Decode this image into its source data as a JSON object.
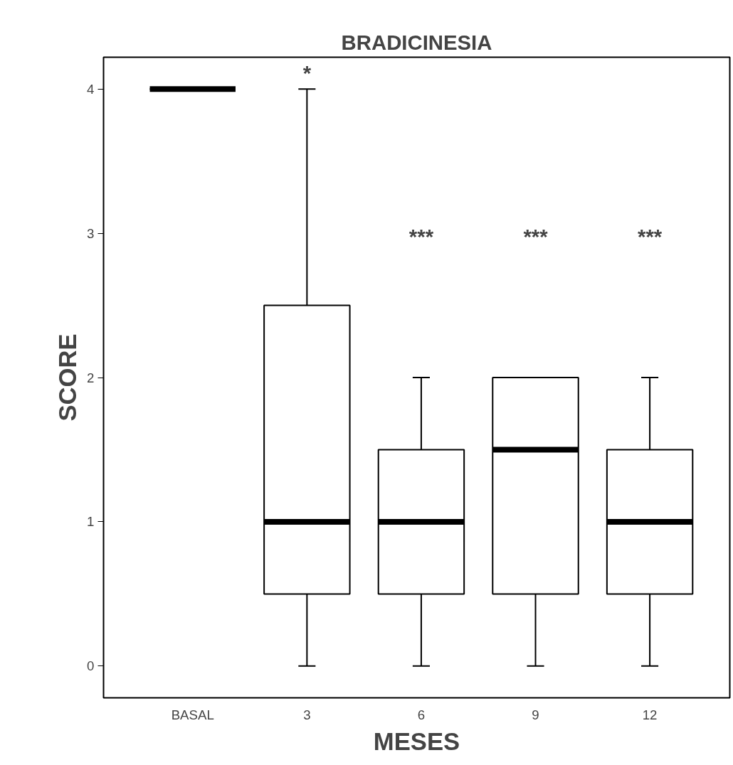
{
  "chart_data": {
    "type": "box",
    "title": "BRADICINESIA",
    "xlabel": "MESES",
    "ylabel": "SCORE",
    "categories": [
      "BASAL",
      "3",
      "6",
      "9",
      "12"
    ],
    "boxes": [
      {
        "low": 4,
        "q1": 4,
        "median": 4,
        "q3": 4,
        "high": 4
      },
      {
        "low": 0,
        "q1": 0.5,
        "median": 1,
        "q3": 2.5,
        "high": 4
      },
      {
        "low": 0,
        "q1": 0.5,
        "median": 1,
        "q3": 1.5,
        "high": 2
      },
      {
        "low": 0,
        "q1": 0.5,
        "median": 1.5,
        "q3": 2,
        "high": 2
      },
      {
        "low": 0,
        "q1": 0.5,
        "median": 1,
        "q3": 1.5,
        "high": 2
      }
    ],
    "ylim": [
      -0.22,
      4.22
    ],
    "yticks": [
      0,
      1,
      2,
      3,
      4
    ],
    "annotations": [
      {
        "text": "*",
        "x": "3",
        "y": 4
      },
      "***",
      "***",
      "***"
    ]
  }
}
